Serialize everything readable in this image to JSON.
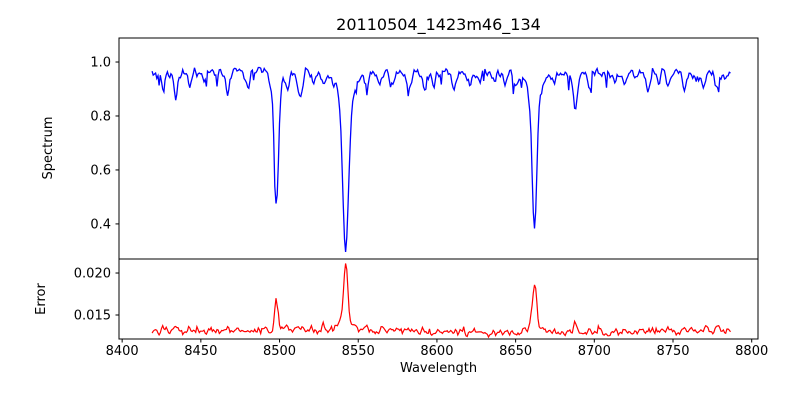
{
  "figure": {
    "title": "20110504_1423m46_134",
    "background": "#ffffff",
    "frame_color": "#000000"
  },
  "axes": {
    "xlabel": "Wavelength",
    "xlim": [
      8398,
      8804
    ],
    "x_ticks": {
      "values": [
        8400,
        8450,
        8500,
        8550,
        8600,
        8650,
        8700,
        8750,
        8800
      ],
      "labels": [
        "8400",
        "8450",
        "8500",
        "8550",
        "8600",
        "8650",
        "8700",
        "8750",
        "8800"
      ]
    },
    "top": {
      "ylabel": "Spectrum",
      "ylim": [
        0.27,
        1.089
      ],
      "y_ticks": {
        "values": [
          1.0,
          0.8,
          0.6,
          0.4
        ],
        "labels": [
          "1.0",
          "0.8",
          "0.6",
          "0.4"
        ]
      }
    },
    "bottom": {
      "ylabel": "Error",
      "ylim": [
        0.01214,
        0.02167
      ],
      "y_ticks": {
        "values": [
          0.02,
          0.015
        ],
        "labels": [
          "0.020",
          "0.015"
        ]
      }
    }
  },
  "chart_data": [
    {
      "type": "line",
      "name": "spectrum",
      "color": "#0000ff",
      "x_range": [
        8419,
        8787
      ],
      "continuum_level": 0.96,
      "absorption_lines": [
        {
          "center": 8498,
          "min": 0.46
        },
        {
          "center": 8542,
          "min": 0.3
        },
        {
          "center": 8662,
          "min": 0.385
        },
        {
          "center": 8434,
          "min": 0.87
        },
        {
          "center": 8467,
          "min": 0.89
        },
        {
          "center": 8513,
          "min": 0.86
        },
        {
          "center": 8528,
          "min": 0.9
        },
        {
          "center": 8582,
          "min": 0.9
        },
        {
          "center": 8688,
          "min": 0.82
        },
        {
          "center": 8734,
          "min": 0.9
        },
        {
          "center": 8770,
          "min": 0.9
        }
      ]
    },
    {
      "type": "line",
      "name": "error",
      "color": "#ff0000",
      "x_range": [
        8419,
        8787
      ],
      "baseline": 0.0131,
      "peaks": [
        {
          "center": 8498,
          "value": 0.0166
        },
        {
          "center": 8542,
          "value": 0.0212
        },
        {
          "center": 8662,
          "value": 0.019
        },
        {
          "center": 8688,
          "value": 0.0145
        }
      ]
    }
  ],
  "render": {
    "seed": 20110504,
    "step": 0.75,
    "spectrum_noise": 0.024,
    "error_noise": 0.0005,
    "spectrum_features": [
      [
        8498,
        0.45,
        1.3
      ],
      [
        8498,
        0.05,
        4.0
      ],
      [
        8542,
        0.56,
        1.8
      ],
      [
        8542,
        0.1,
        5.5
      ],
      [
        8662,
        0.5,
        1.5
      ],
      [
        8662,
        0.08,
        5.0
      ],
      [
        8426,
        0.07,
        1.0
      ],
      [
        8434,
        0.09,
        1.1
      ],
      [
        8443,
        0.05,
        1.0
      ],
      [
        8452,
        0.04,
        1.0
      ],
      [
        8467,
        0.07,
        1.4
      ],
      [
        8480,
        0.06,
        1.2
      ],
      [
        8505,
        0.04,
        1.0
      ],
      [
        8513,
        0.1,
        1.4
      ],
      [
        8521,
        0.04,
        1.0
      ],
      [
        8528,
        0.06,
        1.2
      ],
      [
        8556,
        0.04,
        1.0
      ],
      [
        8564,
        0.04,
        1.0
      ],
      [
        8571,
        0.03,
        1.0
      ],
      [
        8582,
        0.06,
        1.3
      ],
      [
        8592,
        0.05,
        1.1
      ],
      [
        8598,
        0.04,
        1.0
      ],
      [
        8611,
        0.05,
        1.2
      ],
      [
        8621,
        0.04,
        1.0
      ],
      [
        8627,
        0.03,
        1.0
      ],
      [
        8636,
        0.03,
        1.0
      ],
      [
        8643,
        0.04,
        1.1
      ],
      [
        8650,
        0.03,
        1.0
      ],
      [
        8675,
        0.04,
        1.0
      ],
      [
        8688,
        0.135,
        1.4
      ],
      [
        8697,
        0.05,
        1.1
      ],
      [
        8713,
        0.04,
        1.0
      ],
      [
        8720,
        0.05,
        1.1
      ],
      [
        8727,
        0.03,
        1.0
      ],
      [
        8734,
        0.06,
        1.2
      ],
      [
        8741,
        0.03,
        1.0
      ],
      [
        8747,
        0.045,
        1.0
      ],
      [
        8757,
        0.05,
        1.1
      ],
      [
        8764,
        0.03,
        1.0
      ],
      [
        8770,
        0.06,
        1.2
      ],
      [
        8778,
        0.05,
        1.0
      ]
    ],
    "error_features": [
      [
        8498,
        0.0035,
        1.1
      ],
      [
        8542,
        0.0068,
        1.3
      ],
      [
        8542,
        0.0012,
        4.5
      ],
      [
        8662,
        0.0051,
        1.3
      ],
      [
        8662,
        0.0008,
        4.0
      ],
      [
        8426,
        0.0004,
        1.0
      ],
      [
        8434,
        0.0006,
        1.2
      ],
      [
        8443,
        0.0003,
        1.0
      ],
      [
        8467,
        0.0005,
        1.2
      ],
      [
        8480,
        0.0004,
        1.0
      ],
      [
        8505,
        0.0003,
        1.0
      ],
      [
        8513,
        0.0005,
        1.2
      ],
      [
        8528,
        0.0008,
        1.0
      ],
      [
        8556,
        0.0003,
        1.0
      ],
      [
        8566,
        0.0005,
        1.1
      ],
      [
        8582,
        0.0004,
        1.0
      ],
      [
        8592,
        0.0003,
        1.0
      ],
      [
        8611,
        0.0004,
        1.0
      ],
      [
        8622,
        0.0004,
        1.0
      ],
      [
        8643,
        0.0003,
        1.0
      ],
      [
        8675,
        0.0004,
        1.0
      ],
      [
        8688,
        0.0012,
        1.2
      ],
      [
        8697,
        0.0003,
        1.0
      ],
      [
        8713,
        0.0003,
        1.0
      ],
      [
        8720,
        0.0003,
        1.0
      ],
      [
        8734,
        0.0004,
        1.0
      ],
      [
        8747,
        0.0003,
        1.0
      ],
      [
        8757,
        0.0003,
        1.0
      ],
      [
        8770,
        0.0004,
        1.0
      ],
      [
        8778,
        0.0003,
        1.0
      ]
    ]
  }
}
